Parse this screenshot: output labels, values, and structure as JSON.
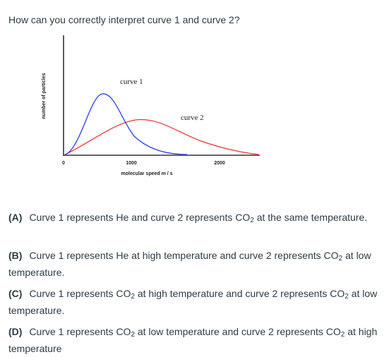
{
  "question": {
    "text": "How can you correctly interpret curve 1 and curve 2?"
  },
  "figure": {
    "y_axis_label": "number of particles",
    "x_axis_label": "molecular speed  m / s",
    "x_ticks": [
      "0",
      "1000",
      "2000"
    ],
    "curve1_label": "curve 1",
    "curve2_label": "curve 2",
    "colors": {
      "curve1": "#2a3ef5",
      "curve2": "#ee3333",
      "axis": "#333333"
    }
  },
  "choices": [
    {
      "letter": "(A)",
      "before": "Curve 1 represents He and curve 2 represents CO",
      "sub1": "2",
      "middle": " at the same temperature.",
      "sub2": "",
      "after": ""
    },
    {
      "letter": "(B)",
      "before": "Curve 1 represents He at high temperature and curve 2 represents CO",
      "sub1": "2",
      "middle": " at low temperature.",
      "sub2": "",
      "after": ""
    },
    {
      "letter": "(C)",
      "before": "Curve 1 represents CO",
      "sub1": "2",
      "middle": " at high temperature and curve 2 represents CO",
      "sub2": "2",
      "after": " at low temperature."
    },
    {
      "letter": "(D)",
      "before": "Curve 1 represents CO",
      "sub1": "2",
      "middle": " at low temperature and curve 2 represents CO",
      "sub2": "2",
      "after": " at high temperature"
    }
  ]
}
